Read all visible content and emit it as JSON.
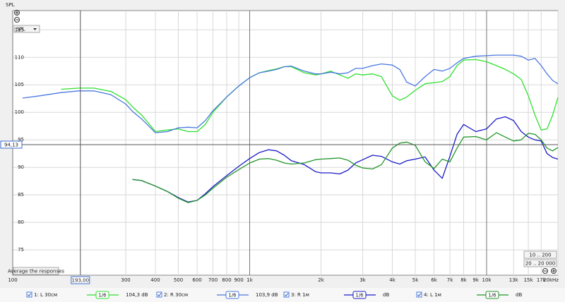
{
  "chart_data": {
    "type": "line",
    "y_axis_label": "SPL",
    "x": [
      110,
      130,
      160,
      190,
      220,
      260,
      300,
      320,
      350,
      400,
      450,
      500,
      550,
      600,
      650,
      700,
      800,
      900,
      1000,
      1100,
      1200,
      1300,
      1400,
      1500,
      1700,
      1900,
      2000,
      2200,
      2400,
      2600,
      2800,
      3000,
      3300,
      3600,
      4000,
      4300,
      4600,
      5000,
      5500,
      6000,
      6500,
      7000,
      7500,
      8000,
      9000,
      10000,
      11000,
      12000,
      13000,
      14000,
      15000,
      16000,
      17000,
      18000,
      19000,
      20000
    ],
    "xlim": [
      100,
      20000
    ],
    "log_x": true,
    "xticks": [
      {
        "value": 100,
        "label": "100"
      },
      {
        "value": 300,
        "label": "300"
      },
      {
        "value": 400,
        "label": "400"
      },
      {
        "value": 500,
        "label": "500"
      },
      {
        "value": 600,
        "label": "600"
      },
      {
        "value": 700,
        "label": "700"
      },
      {
        "value": 800,
        "label": "800"
      },
      {
        "value": 900,
        "label": "900"
      },
      {
        "value": 1000,
        "label": "1k"
      },
      {
        "value": 2000,
        "label": "2k"
      },
      {
        "value": 3000,
        "label": "3k"
      },
      {
        "value": 4000,
        "label": "4k"
      },
      {
        "value": 5000,
        "label": "5k"
      },
      {
        "value": 6000,
        "label": "6k"
      },
      {
        "value": 7000,
        "label": "7k"
      },
      {
        "value": 8000,
        "label": "8k"
      },
      {
        "value": 9000,
        "label": "9k"
      },
      {
        "value": 10000,
        "label": "10k"
      },
      {
        "value": 13000,
        "label": "13k"
      },
      {
        "value": 15000,
        "label": "15k"
      },
      {
        "value": 17000,
        "label": "17k"
      },
      {
        "value": 20000,
        "label": "20kHz"
      }
    ],
    "ylim": [
      70.4,
      118.5
    ],
    "yticks": [
      75,
      80,
      85,
      90,
      95,
      100,
      105,
      110,
      115
    ],
    "grid": true,
    "cursor": {
      "x": {
        "value": 193,
        "label": "193,00"
      },
      "y": {
        "value": 94.13,
        "label": "94,13"
      }
    },
    "series": [
      {
        "name": "1: L 30см",
        "color": "#2fe02f",
        "smoothing": "1/6",
        "legend_value": "104,3 dB",
        "values": [
          null,
          null,
          104.2,
          104.4,
          104.4,
          103.8,
          102.3,
          101.0,
          99.5,
          96.5,
          96.8,
          97.0,
          96.5,
          96.5,
          97.8,
          100,
          102.8,
          104.8,
          106.3,
          107.2,
          107.6,
          107.9,
          108.3,
          108.3,
          107.2,
          106.8,
          107.0,
          107.5,
          106.8,
          106.2,
          107.0,
          106.8,
          107.0,
          106.5,
          103.0,
          102.2,
          102.8,
          104.0,
          105.2,
          105.4,
          105.6,
          106.5,
          108.5,
          109.5,
          109.6,
          109.2,
          108.5,
          107.8,
          107.0,
          106.0,
          103.0,
          99.5,
          96.8,
          97.0,
          99.5,
          102.7
        ]
      },
      {
        "name": "2: R 30см",
        "color": "#4a78e0",
        "smoothing": "1/6",
        "legend_value": "103,9 dB",
        "values": [
          102.6,
          103.0,
          103.6,
          103.9,
          103.9,
          103.2,
          101.5,
          100.2,
          98.8,
          96.3,
          96.5,
          97.2,
          97.3,
          97.2,
          98.5,
          100.3,
          102.8,
          104.8,
          106.3,
          107.2,
          107.5,
          107.8,
          108.3,
          108.4,
          107.5,
          107.0,
          107.0,
          107.3,
          107.0,
          107.2,
          108.0,
          108.0,
          108.5,
          108.8,
          108.6,
          107.8,
          105.5,
          104.8,
          106.5,
          107.8,
          107.5,
          108.0,
          109.0,
          109.8,
          110.2,
          110.3,
          110.4,
          110.4,
          110.4,
          110.2,
          109.5,
          109.8,
          108.5,
          107.0,
          105.8,
          105.2
        ]
      },
      {
        "name": "3: R 1м",
        "color": "#1c1cc8",
        "smoothing": "1/6",
        "legend_value": "dB",
        "values": [
          null,
          null,
          null,
          null,
          null,
          null,
          null,
          87.8,
          87.6,
          86.6,
          85.6,
          84.5,
          83.7,
          84.0,
          85.2,
          86.5,
          88.5,
          90.2,
          91.6,
          92.7,
          93.2,
          93.0,
          92.2,
          91.2,
          90.5,
          89.2,
          89.0,
          89.0,
          88.8,
          89.5,
          90.8,
          91.4,
          92.2,
          92.0,
          91.0,
          90.6,
          91.2,
          91.5,
          91.9,
          89.5,
          88.0,
          92.0,
          96.0,
          97.8,
          96.5,
          97.0,
          98.8,
          99.2,
          98.5,
          96.5,
          95.5,
          95.0,
          94.8,
          92.5,
          91.8,
          91.5
        ]
      },
      {
        "name": "4: L 1м",
        "color": "#22962a",
        "smoothing": "1/6",
        "legend_value": "dB",
        "values": [
          null,
          null,
          null,
          null,
          null,
          null,
          null,
          87.8,
          87.6,
          86.6,
          85.6,
          84.4,
          83.6,
          84.0,
          85.0,
          86.2,
          88.2,
          89.6,
          90.8,
          91.5,
          91.6,
          91.3,
          90.8,
          90.6,
          90.8,
          91.4,
          91.5,
          91.6,
          91.7,
          91.3,
          90.4,
          89.9,
          89.7,
          90.5,
          93.5,
          94.4,
          94.6,
          94.0,
          91.0,
          89.8,
          91.5,
          91.0,
          93.5,
          95.5,
          95.6,
          95.0,
          96.3,
          95.5,
          94.8,
          95.0,
          96.2,
          96.0,
          95.0,
          93.5,
          93.0,
          93.6
        ]
      }
    ]
  },
  "controls": {
    "spl_dropdown": "SPL",
    "average_button": "Average the responses",
    "range_button_1": "10 .. 200",
    "range_button_2": "20 .. 20 000"
  }
}
